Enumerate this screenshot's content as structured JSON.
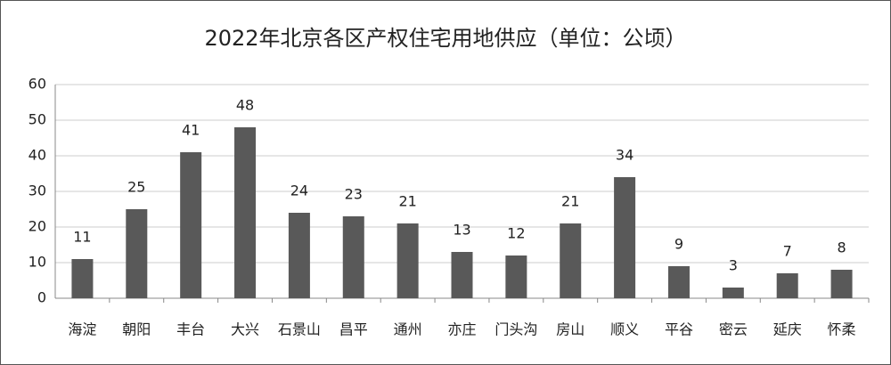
{
  "chart_data": {
    "type": "bar",
    "title": "2022年北京各区产权住宅用地供应（单位：公顷）",
    "categories": [
      "海淀",
      "朝阳",
      "丰台",
      "大兴",
      "石景山",
      "昌平",
      "通州",
      "亦庄",
      "门头沟",
      "房山",
      "顺义",
      "平谷",
      "密云",
      "延庆",
      "怀柔"
    ],
    "values": [
      11,
      25,
      41,
      48,
      24,
      23,
      21,
      13,
      12,
      21,
      34,
      9,
      3,
      7,
      8
    ],
    "color": "#595959",
    "ylim": [
      0,
      60
    ],
    "yticks": [
      0,
      10,
      20,
      30,
      40,
      50,
      60
    ],
    "grid": true,
    "data_labels": true
  }
}
